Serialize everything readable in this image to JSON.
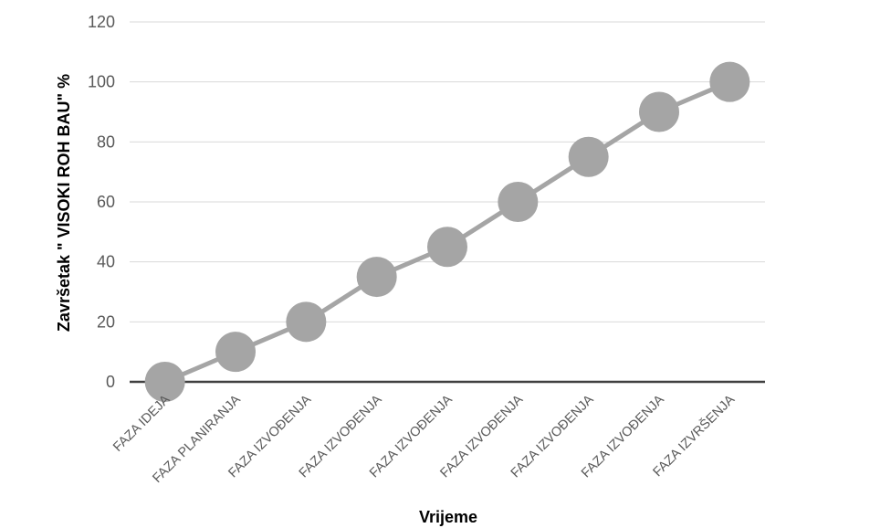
{
  "chart_data": {
    "type": "line",
    "title": "",
    "xlabel": "Vrijeme",
    "ylabel": "Završetak \" VISOKI ROH BAU\" %",
    "categories": [
      "FAZA IDEJA",
      "FAZA PLANIRANJA",
      "FAZA IZVOĐENJA",
      "FAZA IZVOĐENJA",
      "FAZA IZVOĐENJA",
      "FAZA IZVOĐENJA",
      "FAZA IZVOĐENJA",
      "FAZA IZVOĐENJA",
      "FAZA IZVRŠENJA"
    ],
    "series": [
      {
        "values": [
          0,
          10,
          20,
          35,
          45,
          60,
          75,
          90,
          100
        ]
      }
    ],
    "ylim": [
      0,
      120
    ],
    "yticks": [
      "0",
      "20",
      "40",
      "60",
      "80",
      "100",
      "120"
    ],
    "grid": true,
    "legend": "none",
    "colors": {
      "series": "#A5A5A5",
      "gridline": "#D9D9D9",
      "zero_axis": "#404040",
      "tick_text": "#595959",
      "axis_title": "#000000"
    }
  }
}
